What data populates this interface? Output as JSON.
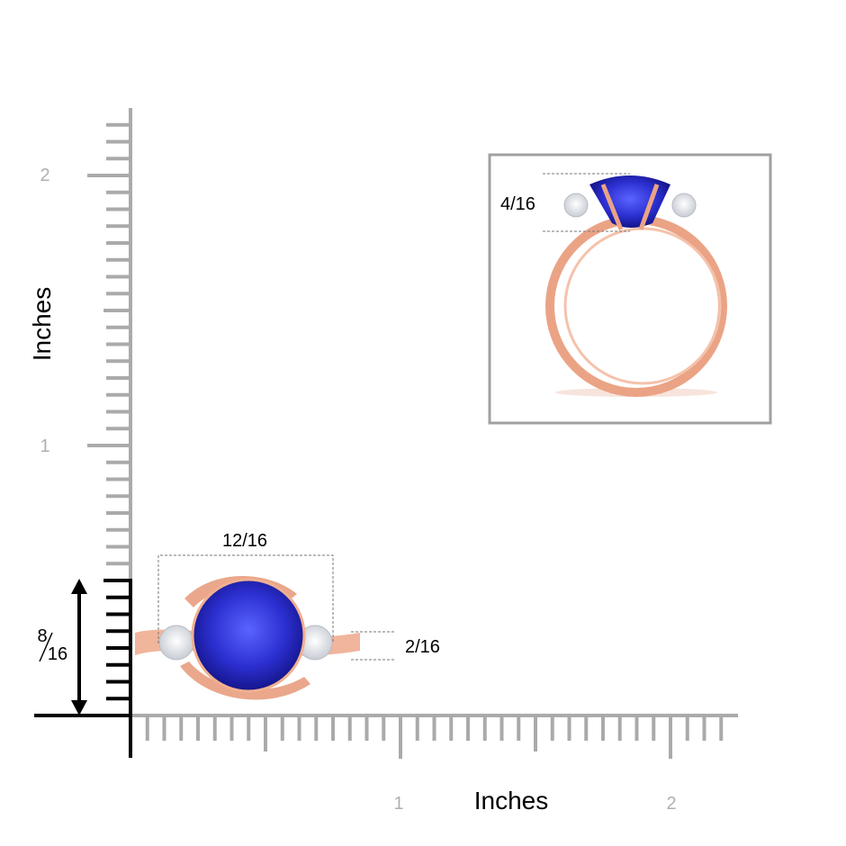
{
  "ruler": {
    "x_label": "Inches",
    "y_label": "Inches",
    "x_ticks": [
      "1",
      "2"
    ],
    "y_ticks": [
      "2",
      "1"
    ]
  },
  "dimensions": {
    "width": "12/16",
    "stone_height": "2/16",
    "profile_height": "4/16",
    "ring_height": {
      "numerator": "8",
      "denominator": "16"
    }
  }
}
